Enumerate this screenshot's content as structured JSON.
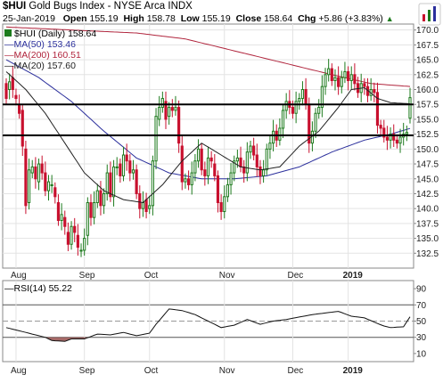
{
  "header": {
    "symbol": "$HUI",
    "name": "Gold Bugs Index - NYSE Arca  INDX",
    "date": "25-Jan-2019",
    "open_label": "Open",
    "open": "155.19",
    "high_label": "High",
    "high": "158.78",
    "low_label": "Low",
    "low": "155.19",
    "close_label": "Close",
    "close": "158.64",
    "chg_label": "Chg",
    "chg": "+5.86 (+3.83%)",
    "chg_icon": "up-triangle-icon"
  },
  "colors": {
    "up": "#1e7b1e",
    "down": "#c8102e",
    "ma50": "#2b2f9c",
    "ma200": "#b0243c",
    "ma20": "#222222",
    "hline": "#000000",
    "panel_bg": "#ffffff",
    "rsi_fill": "#9c5a58"
  },
  "chart_data": [
    {
      "type": "candlestick",
      "legend": {
        "price": "$HUI (Daily) 158.64",
        "ma50": "MA(50) 153.46",
        "ma200": "MA(200) 160.51",
        "ma20": "MA(20) 157.60"
      },
      "ylim": [
        130,
        171
      ],
      "yticks": [
        132.5,
        135,
        137.5,
        140,
        142.5,
        145,
        147.5,
        150,
        152.5,
        155,
        157.5,
        160,
        162.5,
        165,
        167.5,
        170
      ],
      "ytick_labels": [
        "132.5",
        "135.0",
        "137.5",
        "140.0",
        "142.5",
        "145.0",
        "147.5",
        "150.0",
        "152.5",
        "155.0",
        "157.5",
        "160.0",
        "162.5",
        "165.0",
        "167.5",
        "170.0"
      ],
      "x_month_labels": [
        {
          "label": "Aug",
          "day": 3
        },
        {
          "label": "Sep",
          "day": 24
        },
        {
          "label": "Oct",
          "day": 44
        },
        {
          "label": "Nov",
          "day": 67
        },
        {
          "label": "Dec",
          "day": 88
        },
        {
          "label": "2019",
          "day": 105,
          "bold": true
        }
      ],
      "horizontal_lines": [
        157.5,
        152.3
      ],
      "days": 125,
      "ohlc_anchors": [
        [
          0,
          161.0,
          158.5
        ],
        [
          1,
          160.0,
          161.3
        ],
        [
          2,
          162.0,
          160.0
        ],
        [
          3,
          159.0,
          158.5
        ],
        [
          4,
          157.5,
          156.0
        ],
        [
          5,
          156.5,
          150.5
        ],
        [
          6,
          150.0,
          140.5
        ],
        [
          7,
          141.0,
          146.5
        ],
        [
          8,
          146.0,
          147.0
        ],
        [
          9,
          147.0,
          145.0
        ],
        [
          10,
          144.5,
          147.5
        ],
        [
          11,
          147.5,
          146.0
        ],
        [
          12,
          146.0,
          143.0
        ],
        [
          13,
          143.0,
          144.5
        ],
        [
          14,
          144.0,
          144.0
        ],
        [
          15,
          143.5,
          142.0
        ],
        [
          16,
          141.0,
          138.0
        ],
        [
          17,
          138.0,
          139.0
        ],
        [
          18,
          138.5,
          137.0
        ],
        [
          19,
          136.0,
          134.0
        ],
        [
          20,
          134.0,
          137.0
        ],
        [
          21,
          137.0,
          136.0
        ],
        [
          22,
          135.5,
          133.5
        ],
        [
          23,
          133.0,
          133.0
        ],
        [
          24,
          133.0,
          135.0
        ],
        [
          25,
          135.5,
          141.0
        ],
        [
          26,
          141.0,
          138.5
        ],
        [
          27,
          138.5,
          141.0
        ],
        [
          28,
          141.0,
          143.0
        ],
        [
          29,
          143.0,
          140.5
        ],
        [
          30,
          140.5,
          142.5
        ],
        [
          31,
          142.5,
          146.0
        ],
        [
          32,
          146.0,
          142.0
        ],
        [
          33,
          142.0,
          147.0
        ],
        [
          34,
          147.0,
          147.0
        ],
        [
          35,
          147.5,
          145.5
        ],
        [
          36,
          145.5,
          149.0
        ],
        [
          37,
          149.0,
          148.0
        ],
        [
          38,
          148.0,
          146.0
        ],
        [
          39,
          146.0,
          146.5
        ],
        [
          40,
          146.5,
          142.5
        ],
        [
          41,
          142.5,
          140.0
        ],
        [
          42,
          140.0,
          141.0
        ],
        [
          43,
          141.5,
          139.5
        ],
        [
          44,
          140.0,
          140.5
        ],
        [
          45,
          140.5,
          148.0
        ],
        [
          46,
          148.0,
          155.5
        ],
        [
          47,
          155.0,
          157.0
        ],
        [
          48,
          157.0,
          158.5
        ],
        [
          49,
          158.0,
          155.0
        ],
        [
          50,
          155.5,
          157.0
        ],
        [
          51,
          157.0,
          156.5
        ],
        [
          52,
          156.5,
          157.0
        ],
        [
          53,
          157.0,
          151.0
        ],
        [
          54,
          150.5,
          144.5
        ],
        [
          55,
          144.5,
          145.0
        ],
        [
          56,
          145.0,
          144.0
        ],
        [
          57,
          144.0,
          146.0
        ],
        [
          58,
          146.0,
          148.0
        ],
        [
          59,
          148.0,
          150.0
        ],
        [
          60,
          150.0,
          146.5
        ],
        [
          61,
          146.5,
          145.5
        ],
        [
          62,
          145.5,
          148.5
        ],
        [
          63,
          148.5,
          148.0
        ],
        [
          64,
          147.5,
          145.5
        ],
        [
          65,
          145.5,
          141.0
        ],
        [
          66,
          141.0,
          139.5
        ],
        [
          67,
          139.5,
          142.0
        ],
        [
          68,
          142.0,
          144.0
        ],
        [
          69,
          144.0,
          146.0
        ],
        [
          70,
          146.0,
          148.0
        ],
        [
          71,
          148.0,
          148.5
        ],
        [
          72,
          148.5,
          147.0
        ],
        [
          73,
          147.0,
          146.0
        ],
        [
          74,
          146.0,
          149.5
        ],
        [
          75,
          149.5,
          150.5
        ],
        [
          76,
          150.5,
          149.0
        ],
        [
          77,
          149.0,
          147.0
        ],
        [
          78,
          147.0,
          145.5
        ],
        [
          79,
          145.5,
          146.5
        ],
        [
          80,
          146.5,
          150.0
        ],
        [
          81,
          150.0,
          151.0
        ],
        [
          82,
          151.0,
          153.0
        ],
        [
          83,
          153.0,
          151.5
        ],
        [
          84,
          151.5,
          153.5
        ],
        [
          85,
          153.5,
          156.5
        ],
        [
          86,
          156.5,
          158.0
        ],
        [
          87,
          158.0,
          157.0
        ],
        [
          88,
          157.0,
          156.0
        ],
        [
          89,
          156.0,
          158.0
        ],
        [
          90,
          158.0,
          158.5
        ],
        [
          91,
          158.5,
          160.0
        ],
        [
          92,
          160.0,
          157.5
        ],
        [
          93,
          157.5,
          151.0
        ],
        [
          94,
          151.0,
          153.0
        ],
        [
          95,
          153.0,
          156.0
        ],
        [
          96,
          156.0,
          157.0
        ],
        [
          97,
          157.0,
          160.5
        ],
        [
          98,
          160.5,
          162.5
        ],
        [
          99,
          162.5,
          163.5
        ],
        [
          100,
          163.5,
          161.5
        ],
        [
          101,
          161.5,
          162.0
        ],
        [
          102,
          162.0,
          160.5
        ],
        [
          103,
          160.5,
          162.0
        ],
        [
          104,
          162.0,
          163.0
        ],
        [
          105,
          163.0,
          161.5
        ],
        [
          106,
          161.5,
          162.5
        ],
        [
          107,
          162.5,
          161.0
        ],
        [
          108,
          161.0,
          159.5
        ],
        [
          109,
          159.5,
          161.0
        ],
        [
          110,
          161.0,
          160.5
        ],
        [
          111,
          160.5,
          159.0
        ],
        [
          112,
          159.0,
          160.0
        ],
        [
          113,
          160.0,
          159.5
        ],
        [
          114,
          159.5,
          154.0
        ],
        [
          115,
          154.0,
          153.5
        ],
        [
          116,
          153.5,
          152.0
        ],
        [
          117,
          152.0,
          151.5
        ],
        [
          118,
          151.5,
          152.5
        ],
        [
          119,
          152.5,
          151.5
        ],
        [
          120,
          151.5,
          151.0
        ],
        [
          121,
          151.0,
          152.0
        ],
        [
          122,
          152.0,
          152.5
        ],
        [
          123,
          152.5,
          152.8
        ],
        [
          124,
          155.19,
          158.64
        ]
      ],
      "ma20_anchors": [
        [
          0,
          163.0
        ],
        [
          6,
          160.0
        ],
        [
          12,
          156.0
        ],
        [
          18,
          151.0
        ],
        [
          24,
          146.0
        ],
        [
          30,
          143.0
        ],
        [
          36,
          141.5
        ],
        [
          42,
          141.0
        ],
        [
          48,
          144.0
        ],
        [
          54,
          148.0
        ],
        [
          60,
          151.0
        ],
        [
          66,
          149.0
        ],
        [
          72,
          147.0
        ],
        [
          78,
          146.5
        ],
        [
          84,
          147.0
        ],
        [
          90,
          150.5
        ],
        [
          96,
          153.0
        ],
        [
          102,
          157.0
        ],
        [
          106,
          160.0
        ],
        [
          110,
          160.3
        ],
        [
          114,
          158.5
        ],
        [
          118,
          157.8
        ],
        [
          124,
          157.6
        ]
      ],
      "ma50_anchors": [
        [
          0,
          165.0
        ],
        [
          10,
          162.0
        ],
        [
          20,
          158.0
        ],
        [
          30,
          153.0
        ],
        [
          40,
          148.5
        ],
        [
          50,
          146.0
        ],
        [
          60,
          145.0
        ],
        [
          70,
          145.0
        ],
        [
          80,
          145.5
        ],
        [
          90,
          147.0
        ],
        [
          100,
          149.5
        ],
        [
          110,
          151.5
        ],
        [
          118,
          152.5
        ],
        [
          124,
          153.46
        ]
      ],
      "ma200_anchors": [
        [
          0,
          170.5
        ],
        [
          20,
          170.0
        ],
        [
          40,
          169.5
        ],
        [
          55,
          168.5
        ],
        [
          70,
          166.5
        ],
        [
          85,
          164.5
        ],
        [
          100,
          162.5
        ],
        [
          112,
          161.0
        ],
        [
          124,
          160.51
        ]
      ]
    },
    {
      "type": "line",
      "legend": "RSI(14) 55.22",
      "ylim": [
        0,
        100
      ],
      "yticks": [
        10,
        30,
        50,
        70,
        90
      ],
      "ytick_labels": [
        "10",
        "30",
        "50",
        "70",
        "90"
      ],
      "reference_lines": [
        30,
        50,
        70
      ],
      "oversold_fill": true,
      "x_month_labels": [
        {
          "label": "Aug",
          "day": 3
        },
        {
          "label": "Sep",
          "day": 24
        },
        {
          "label": "Oct",
          "day": 44
        },
        {
          "label": "Nov",
          "day": 67
        },
        {
          "label": "Dec",
          "day": 88
        },
        {
          "label": "2019",
          "day": 105,
          "bold": true
        }
      ],
      "anchors": [
        [
          0,
          42
        ],
        [
          6,
          36
        ],
        [
          12,
          30
        ],
        [
          14,
          26
        ],
        [
          18,
          25
        ],
        [
          20,
          28
        ],
        [
          24,
          28
        ],
        [
          28,
          34
        ],
        [
          32,
          33
        ],
        [
          36,
          36
        ],
        [
          40,
          32
        ],
        [
          44,
          35
        ],
        [
          46,
          46
        ],
        [
          50,
          65
        ],
        [
          54,
          63
        ],
        [
          58,
          58
        ],
        [
          62,
          50
        ],
        [
          66,
          42
        ],
        [
          70,
          45
        ],
        [
          74,
          52
        ],
        [
          78,
          46
        ],
        [
          82,
          50
        ],
        [
          86,
          52
        ],
        [
          90,
          55
        ],
        [
          94,
          58
        ],
        [
          98,
          60
        ],
        [
          102,
          62
        ],
        [
          106,
          56
        ],
        [
          110,
          54
        ],
        [
          114,
          47
        ],
        [
          116,
          44
        ],
        [
          118,
          42
        ],
        [
          122,
          43
        ],
        [
          124,
          55.22
        ]
      ]
    }
  ]
}
